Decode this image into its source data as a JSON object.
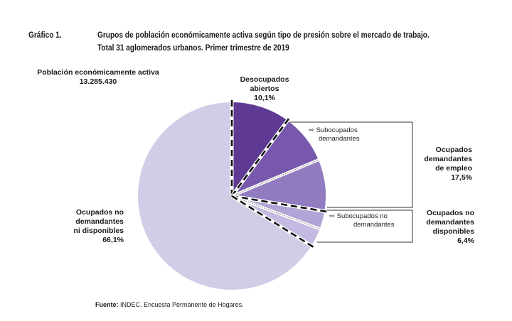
{
  "header": {
    "figure_label": "Gráfico 1.",
    "title_line1": "Grupos de población económicamente activa según tipo de presión sobre el mercado de trabajo.",
    "title_line2": "Total 31 aglomerados urbanos. Primer trimestre de 2019"
  },
  "labels": {
    "pea_title": "Población económicamente activa",
    "pea_value": "13.285.430",
    "desocupados_l1": "Desocupados",
    "desocupados_l2": "abiertos",
    "desocupados_pct": "10,1%",
    "subocupados_dem_l1": "Subocupados",
    "subocupados_dem_l2": "demandantes",
    "ocup_dem_l1": "Ocupados",
    "ocup_dem_l2": "demandantes",
    "ocup_dem_l3": "de empleo",
    "ocup_dem_pct": "17,5%",
    "subocupados_nodem_l1": "Subocupados no",
    "subocupados_nodem_l2": "demandantes",
    "ocup_nodem_disp_l1": "Ocupados no",
    "ocup_nodem_disp_l2": "demandantes",
    "ocup_nodem_disp_l3": "disponibles",
    "ocup_nodem_disp_pct": "6,4%",
    "ocup_nodem_nodisp_l1": "Ocupados no",
    "ocup_nodem_nodisp_l2": "demandantes",
    "ocup_nodem_nodisp_l3": "ni disponibles",
    "ocup_nodem_nodisp_pct": "66,1%"
  },
  "source": {
    "label": "Fuente:",
    "text": "INDEC. Encuesta Permanente de Hogares."
  },
  "chart_data": {
    "type": "pie",
    "start_angle_deg": 0,
    "direction": "clockwise",
    "slices": [
      {
        "key": "desocupados",
        "value": 10.1,
        "color": "#5e3a94"
      },
      {
        "key": "subocupados_demandantes",
        "value": 8.6,
        "color": "#7858ac"
      },
      {
        "key": "ocupados_demandantes_empleo",
        "value": 8.9,
        "color": "#927cc0"
      },
      {
        "key": "subocupados_no_demandantes",
        "value": 3.1,
        "color": "#b2a4d6"
      },
      {
        "key": "ocupados_no_demandantes_disponibles",
        "value": 3.2,
        "color": "#c4b9e0"
      },
      {
        "key": "ocupados_no_demandantes_ni_disponibles",
        "value": 66.1,
        "color": "#d2cce6"
      }
    ],
    "group_separators_after": [
      "desocupados",
      "ocupados_demandantes_empleo",
      "ocupados_no_demandantes_disponibles"
    ]
  }
}
